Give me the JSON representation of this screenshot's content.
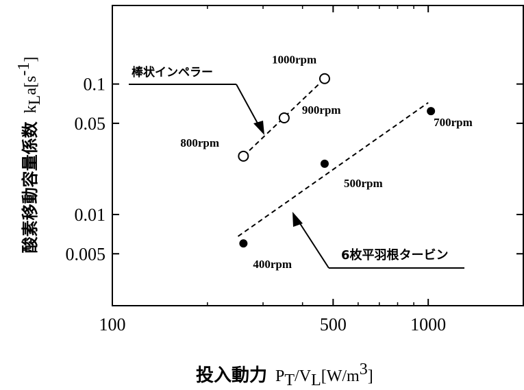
{
  "chart_data": {
    "type": "scatter",
    "x_scale": "log",
    "y_scale": "log",
    "xlim": [
      100,
      2000
    ],
    "ylim": [
      0.002,
      0.4
    ],
    "x_ticks": [
      {
        "value": 100,
        "label": "100"
      },
      {
        "value": 500,
        "label": "500"
      },
      {
        "value": 1000,
        "label": "1000"
      }
    ],
    "y_ticks": [
      {
        "value": 0.1,
        "label": "0.1"
      },
      {
        "value": 0.05,
        "label": "0.05"
      },
      {
        "value": 0.01,
        "label": "0.01"
      },
      {
        "value": 0.005,
        "label": "0.005"
      }
    ],
    "xlabel_jp": "投入動力",
    "xlabel_math": {
      "P": "P",
      "P_sub": "T",
      "slash": "/",
      "V": "V",
      "V_sub": "L",
      "unit_open": "[W/m",
      "unit_sup": "3",
      "unit_close": "]"
    },
    "ylabel_jp": "酸素移動容量係数",
    "ylabel_math": {
      "k": "k",
      "k_sub": "L",
      "a": "a[s",
      "a_sup": "-1",
      "close": "]"
    },
    "grid": false,
    "series": [
      {
        "name": "棒状インペラー",
        "marker": "open-circle",
        "points": [
          {
            "x": 260,
            "y": 0.028,
            "label": "800rpm"
          },
          {
            "x": 350,
            "y": 0.055,
            "label": "900rpm"
          },
          {
            "x": 470,
            "y": 0.11,
            "label": "1000rpm"
          }
        ],
        "fit": {
          "x1": 260,
          "y1": 0.028,
          "x2": 470,
          "y2": 0.11
        }
      },
      {
        "name": "6枚平羽根タービン",
        "marker": "filled-circle",
        "points": [
          {
            "x": 260,
            "y": 0.006,
            "label": "400rpm"
          },
          {
            "x": 470,
            "y": 0.0245,
            "label": "500rpm"
          },
          {
            "x": 1020,
            "y": 0.062,
            "label": "700rpm"
          }
        ],
        "fit": {
          "x1": 250,
          "y1": 0.0068,
          "x2": 1000,
          "y2": 0.072
        }
      }
    ]
  },
  "colors": {
    "ink": "#000000",
    "background": "#ffffff"
  }
}
